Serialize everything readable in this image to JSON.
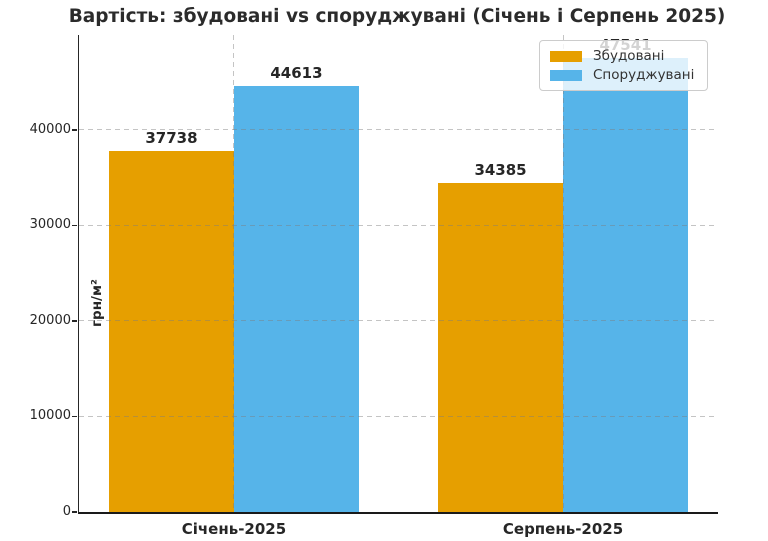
{
  "chart_data": {
    "type": "bar",
    "title": "Вартість: збудовані vs споруджувані (Січень і Серпень 2025)",
    "xlabel": "",
    "ylabel": "грн/м²",
    "categories": [
      "Січень-2025",
      "Серпень-2025"
    ],
    "series": [
      {
        "name": "Збудовані",
        "color": "#E69F00",
        "values": [
          37738,
          34385
        ]
      },
      {
        "name": "Споруджувані",
        "color": "#56B4E9",
        "values": [
          44613,
          47541
        ]
      }
    ],
    "bar_labels": [
      "37738",
      "44613",
      "34385",
      "47541"
    ],
    "ylim": [
      0,
      49918
    ],
    "yticks": [
      0,
      10000,
      20000,
      30000,
      40000
    ],
    "grid": true,
    "grid_style": "dashed",
    "legend_position": "upper right"
  },
  "colors": {
    "background": "#ffffff",
    "text": "#262626",
    "grid": "#c9c9c9",
    "axis": "#1a1a1a",
    "series1": "#E69F00",
    "series2": "#56B4E9"
  }
}
